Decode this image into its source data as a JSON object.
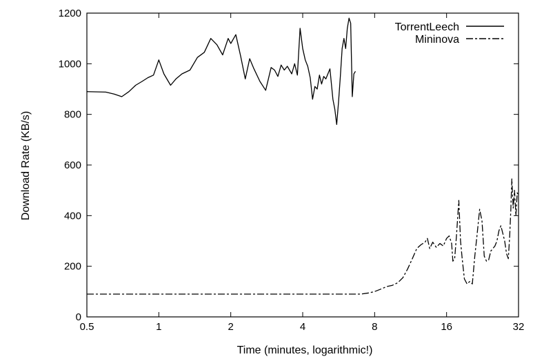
{
  "chart_data": {
    "type": "line",
    "title": "",
    "xlabel": "Time (minutes, logarithmic!)",
    "ylabel": "Download Rate (KB/s)",
    "x_scale": "log2",
    "xlim": [
      0.5,
      32
    ],
    "ylim": [
      0,
      1200
    ],
    "x_ticks": [
      0.5,
      1,
      2,
      4,
      8,
      16,
      32
    ],
    "x_tick_labels": [
      "0.5",
      "1",
      "2",
      "4",
      "8",
      "16",
      "32"
    ],
    "y_ticks": [
      0,
      200,
      400,
      600,
      800,
      1000,
      1200
    ],
    "y_tick_labels": [
      "0",
      "200",
      "400",
      "600",
      "800",
      "1000",
      "1200"
    ],
    "grid": false,
    "legend_position": "top-right",
    "series": [
      {
        "name": "TorrentLeech",
        "style": "solid",
        "color": "#000000",
        "points": [
          [
            0.5,
            890
          ],
          [
            0.6,
            888
          ],
          [
            0.65,
            880
          ],
          [
            0.7,
            870
          ],
          [
            0.75,
            890
          ],
          [
            0.8,
            915
          ],
          [
            0.85,
            930
          ],
          [
            0.9,
            945
          ],
          [
            0.95,
            955
          ],
          [
            1.0,
            1015
          ],
          [
            1.05,
            960
          ],
          [
            1.12,
            915
          ],
          [
            1.18,
            940
          ],
          [
            1.25,
            960
          ],
          [
            1.35,
            975
          ],
          [
            1.45,
            1025
          ],
          [
            1.55,
            1045
          ],
          [
            1.65,
            1100
          ],
          [
            1.75,
            1075
          ],
          [
            1.85,
            1035
          ],
          [
            1.95,
            1100
          ],
          [
            2.0,
            1080
          ],
          [
            2.1,
            1115
          ],
          [
            2.2,
            1030
          ],
          [
            2.3,
            940
          ],
          [
            2.4,
            1020
          ],
          [
            2.5,
            980
          ],
          [
            2.65,
            930
          ],
          [
            2.8,
            895
          ],
          [
            2.95,
            985
          ],
          [
            3.05,
            975
          ],
          [
            3.15,
            950
          ],
          [
            3.25,
            995
          ],
          [
            3.35,
            975
          ],
          [
            3.45,
            990
          ],
          [
            3.6,
            960
          ],
          [
            3.7,
            1000
          ],
          [
            3.8,
            955
          ],
          [
            3.9,
            1140
          ],
          [
            4.0,
            1060
          ],
          [
            4.1,
            1015
          ],
          [
            4.2,
            990
          ],
          [
            4.3,
            945
          ],
          [
            4.4,
            860
          ],
          [
            4.5,
            910
          ],
          [
            4.6,
            900
          ],
          [
            4.7,
            955
          ],
          [
            4.8,
            920
          ],
          [
            4.9,
            950
          ],
          [
            5.0,
            940
          ],
          [
            5.2,
            980
          ],
          [
            5.35,
            860
          ],
          [
            5.45,
            820
          ],
          [
            5.55,
            760
          ],
          [
            5.65,
            850
          ],
          [
            5.75,
            950
          ],
          [
            5.85,
            1060
          ],
          [
            5.95,
            1100
          ],
          [
            6.05,
            1060
          ],
          [
            6.15,
            1140
          ],
          [
            6.25,
            1180
          ],
          [
            6.35,
            1160
          ],
          [
            6.45,
            870
          ],
          [
            6.55,
            960
          ],
          [
            6.65,
            970
          ]
        ]
      },
      {
        "name": "Mininova",
        "style": "dashed",
        "color": "#000000",
        "points": [
          [
            0.5,
            90
          ],
          [
            1.0,
            90
          ],
          [
            2.0,
            90
          ],
          [
            4.0,
            90
          ],
          [
            6.0,
            90
          ],
          [
            7.0,
            90
          ],
          [
            7.6,
            95
          ],
          [
            8.0,
            100
          ],
          [
            8.5,
            110
          ],
          [
            9.0,
            120
          ],
          [
            9.5,
            125
          ],
          [
            10.0,
            135
          ],
          [
            10.5,
            155
          ],
          [
            11.0,
            190
          ],
          [
            11.5,
            230
          ],
          [
            12.0,
            270
          ],
          [
            12.5,
            285
          ],
          [
            13.0,
            295
          ],
          [
            13.3,
            310
          ],
          [
            13.6,
            270
          ],
          [
            14.0,
            295
          ],
          [
            14.5,
            275
          ],
          [
            15.0,
            290
          ],
          [
            15.5,
            280
          ],
          [
            16.0,
            310
          ],
          [
            16.4,
            320
          ],
          [
            16.8,
            290
          ],
          [
            17.0,
            220
          ],
          [
            17.3,
            230
          ],
          [
            17.6,
            320
          ],
          [
            18.0,
            460
          ],
          [
            18.3,
            300
          ],
          [
            18.6,
            230
          ],
          [
            19.0,
            150
          ],
          [
            19.5,
            130
          ],
          [
            20.0,
            140
          ],
          [
            20.5,
            130
          ],
          [
            21.0,
            240
          ],
          [
            21.5,
            330
          ],
          [
            22.0,
            425
          ],
          [
            22.5,
            380
          ],
          [
            23.0,
            240
          ],
          [
            23.5,
            220
          ],
          [
            24.0,
            225
          ],
          [
            24.5,
            260
          ],
          [
            25.0,
            270
          ],
          [
            25.5,
            280
          ],
          [
            26.0,
            300
          ],
          [
            26.5,
            340
          ],
          [
            27.0,
            360
          ],
          [
            27.5,
            330
          ],
          [
            28.0,
            300
          ],
          [
            28.5,
            250
          ],
          [
            29.0,
            230
          ],
          [
            29.4,
            320
          ],
          [
            29.7,
            420
          ],
          [
            30.0,
            545
          ],
          [
            30.4,
            430
          ],
          [
            30.8,
            500
          ],
          [
            31.2,
            400
          ],
          [
            31.6,
            490
          ],
          [
            32.0,
            480
          ]
        ]
      }
    ]
  }
}
